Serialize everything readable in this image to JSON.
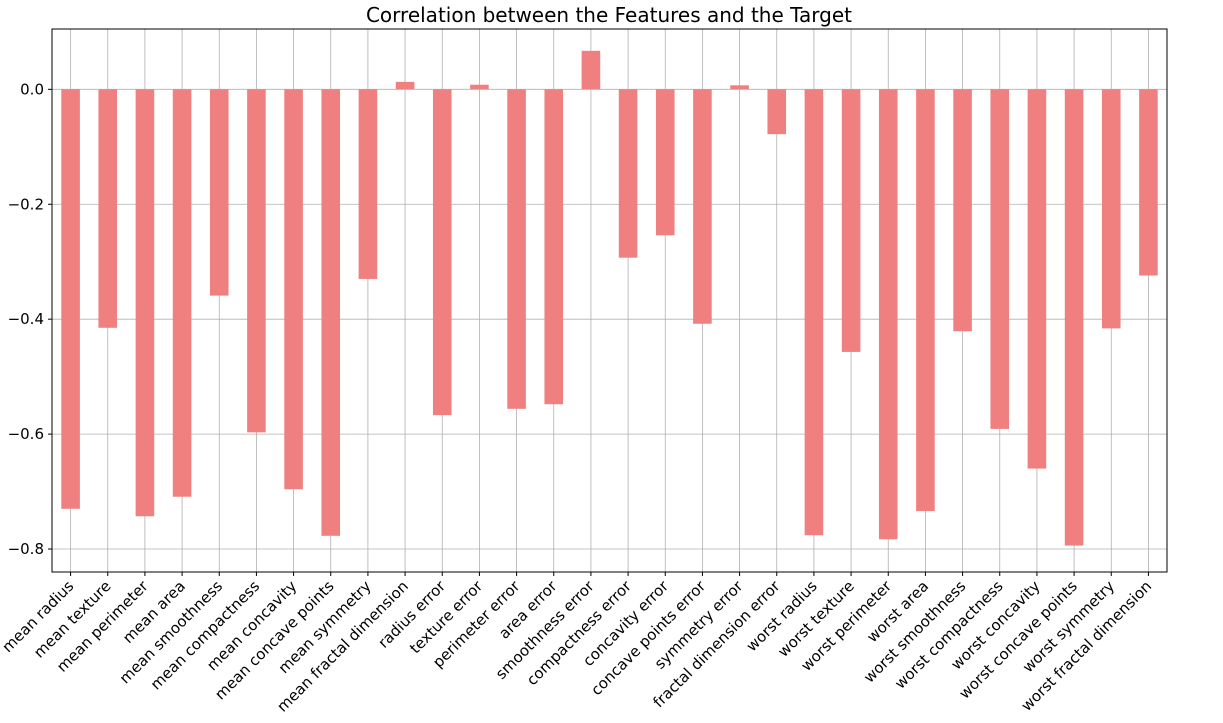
{
  "chart_data": {
    "type": "bar",
    "title": "Correlation between the Features and the Target",
    "xlabel": "",
    "ylabel": "",
    "ylim": [
      -0.84,
      0.105
    ],
    "yticks": [
      0.0,
      -0.2,
      -0.4,
      -0.6,
      -0.8
    ],
    "ytick_labels": [
      "0.0",
      "−0.2",
      "−0.4",
      "−0.6",
      "−0.8"
    ],
    "grid": true,
    "bar_color": "#f08080",
    "categories": [
      "mean radius",
      "mean texture",
      "mean perimeter",
      "mean area",
      "mean smoothness",
      "mean compactness",
      "mean concavity",
      "mean concave points",
      "mean symmetry",
      "mean fractal dimension",
      "radius error",
      "texture error",
      "perimeter error",
      "area error",
      "smoothness error",
      "compactness error",
      "concavity error",
      "concave points error",
      "symmetry error",
      "fractal dimension error",
      "worst radius",
      "worst texture",
      "worst perimeter",
      "worst area",
      "worst smoothness",
      "worst compactness",
      "worst concavity",
      "worst concave points",
      "worst symmetry",
      "worst fractal dimension"
    ],
    "values": [
      -0.73,
      -0.415,
      -0.743,
      -0.709,
      -0.359,
      -0.597,
      -0.696,
      -0.777,
      -0.33,
      0.013,
      -0.567,
      0.008,
      -0.556,
      -0.548,
      0.067,
      -0.293,
      -0.254,
      -0.408,
      0.007,
      -0.078,
      -0.776,
      -0.457,
      -0.783,
      -0.734,
      -0.421,
      -0.591,
      -0.66,
      -0.794,
      -0.416,
      -0.324
    ]
  }
}
